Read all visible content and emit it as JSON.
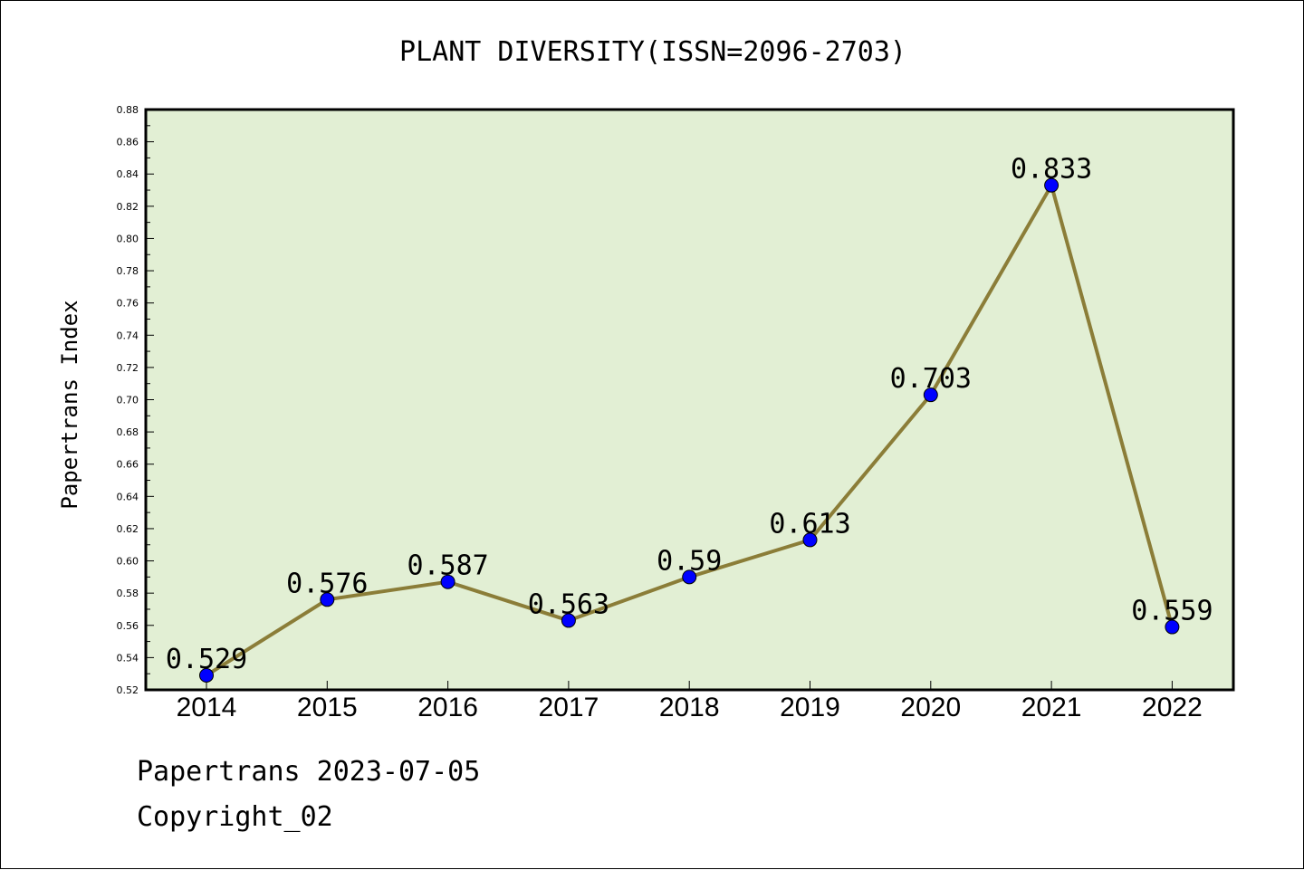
{
  "footer": {
    "line1": "Papertrans 2023-07-05",
    "line2": "Copyright_02"
  },
  "chart_data": {
    "type": "line",
    "title": "PLANT DIVERSITY(ISSN=2096-2703)",
    "xlabel": "",
    "ylabel": "Papertrans Index",
    "categories": [
      "2014",
      "2015",
      "2016",
      "2017",
      "2018",
      "2019",
      "2020",
      "2021",
      "2022"
    ],
    "series": [
      {
        "values": [
          0.529,
          0.576,
          0.587,
          0.563,
          0.59,
          0.613,
          0.703,
          0.833,
          0.559
        ],
        "labels": [
          "0.529",
          "0.576",
          "0.587",
          "0.563",
          "0.59",
          "0.613",
          "0.703",
          "0.833",
          "0.559"
        ]
      }
    ],
    "ylim": [
      0.52,
      0.88
    ],
    "yticks": [
      "0.52",
      "0.54",
      "0.56",
      "0.58",
      "0.60",
      "0.62",
      "0.64",
      "0.66",
      "0.68",
      "0.70",
      "0.72",
      "0.74",
      "0.76",
      "0.78",
      "0.80",
      "0.82",
      "0.84",
      "0.86",
      "0.88"
    ],
    "grid": false,
    "legend": "none",
    "colors": {
      "plot_background": "#e2efd4",
      "line": "#8b7d38",
      "marker": "#0000ff",
      "axis": "#000000"
    }
  }
}
